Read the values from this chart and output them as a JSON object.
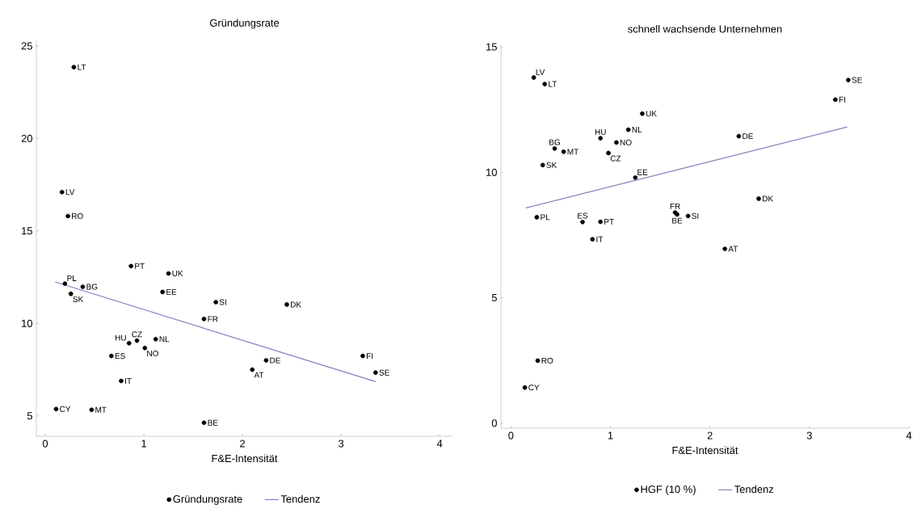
{
  "chart_data": [
    {
      "type": "scatter",
      "title": "Gründungsrate",
      "xlabel": "F&E-Intensität",
      "xlim": [
        -0.09,
        4.13
      ],
      "ylim": [
        3.9,
        25.3
      ],
      "xticks": [
        0,
        1,
        2,
        3,
        4
      ],
      "yticks": [
        5,
        10,
        15,
        20,
        25
      ],
      "legend": "bottom",
      "grid": false,
      "series": [
        {
          "name": "Gründungsrate",
          "type": "scatter",
          "marker": "circle",
          "color": "#000000",
          "x": [
            0.29,
            0.17,
            0.23,
            0.87,
            1.25,
            0.2,
            0.38,
            0.26,
            1.19,
            1.73,
            2.45,
            1.61,
            0.85,
            0.93,
            1.12,
            1.01,
            0.67,
            0.77,
            0.11,
            0.47,
            1.61,
            2.24,
            2.1,
            3.22,
            3.35
          ],
          "values": [
            23.85,
            17.1,
            15.8,
            13.1,
            12.7,
            12.15,
            11.98,
            11.6,
            11.7,
            11.15,
            11.02,
            10.24,
            8.93,
            9.07,
            9.15,
            8.67,
            8.24,
            6.89,
            5.37,
            5.33,
            4.63,
            8.0,
            7.5,
            8.24,
            7.34
          ],
          "value_labels": [
            "LT",
            "LV",
            "RO",
            "PT",
            "UK",
            "PL",
            "BG",
            "SK",
            "EE",
            "SI",
            "DK",
            "FR",
            "HU",
            "CZ",
            "NL",
            "NO",
            "ES",
            "IT",
            "CY",
            "MT",
            "BE",
            "DE",
            "AT",
            "FI",
            "SE"
          ]
        },
        {
          "name": "Tendenz",
          "type": "line",
          "marker": "none",
          "color": "#8080c0",
          "x": [
            0.1,
            3.35
          ],
          "values": [
            12.24,
            6.85
          ]
        }
      ]
    },
    {
      "type": "scatter",
      "title": "schnell wachsende Unternehmen",
      "xlabel": "F&E-Intensität",
      "xlim": [
        -0.1,
        4.0
      ],
      "ylim": [
        -0.2,
        15.1
      ],
      "xticks": [
        0,
        1,
        2,
        3,
        4
      ],
      "yticks": [
        0,
        5,
        10,
        15
      ],
      "legend": "bottom",
      "grid": false,
      "series": [
        {
          "name": "HGF (10 %)",
          "type": "scatter",
          "marker": "circle",
          "color": "#000000",
          "x": [
            0.23,
            0.34,
            1.32,
            1.18,
            0.9,
            1.06,
            0.44,
            0.53,
            0.98,
            0.32,
            1.25,
            0.26,
            0.72,
            0.9,
            0.82,
            1.65,
            1.67,
            1.78,
            0.27,
            0.14,
            3.39,
            3.26,
            2.29,
            2.49,
            2.15
          ],
          "values": [
            13.78,
            13.52,
            12.34,
            11.7,
            11.36,
            11.19,
            10.95,
            10.82,
            10.77,
            10.29,
            9.79,
            8.21,
            8.02,
            8.03,
            7.33,
            8.4,
            8.32,
            8.26,
            2.49,
            1.42,
            13.68,
            12.9,
            11.44,
            8.95,
            6.95
          ],
          "value_labels": [
            "LV",
            "LT",
            "UK",
            "NL",
            "HU",
            "NO",
            "BG",
            "MT",
            "CZ",
            "SK",
            "EE",
            "PL",
            "ES",
            "PT",
            "IT",
            "FR",
            "BE",
            "SI",
            "RO",
            "CY",
            "SE",
            "FI",
            "DE",
            "DK",
            "AT"
          ]
        },
        {
          "name": "Tendenz",
          "type": "line",
          "marker": "none",
          "color": "#8080c0",
          "x": [
            0.15,
            3.38
          ],
          "values": [
            8.58,
            11.81
          ]
        }
      ]
    }
  ]
}
